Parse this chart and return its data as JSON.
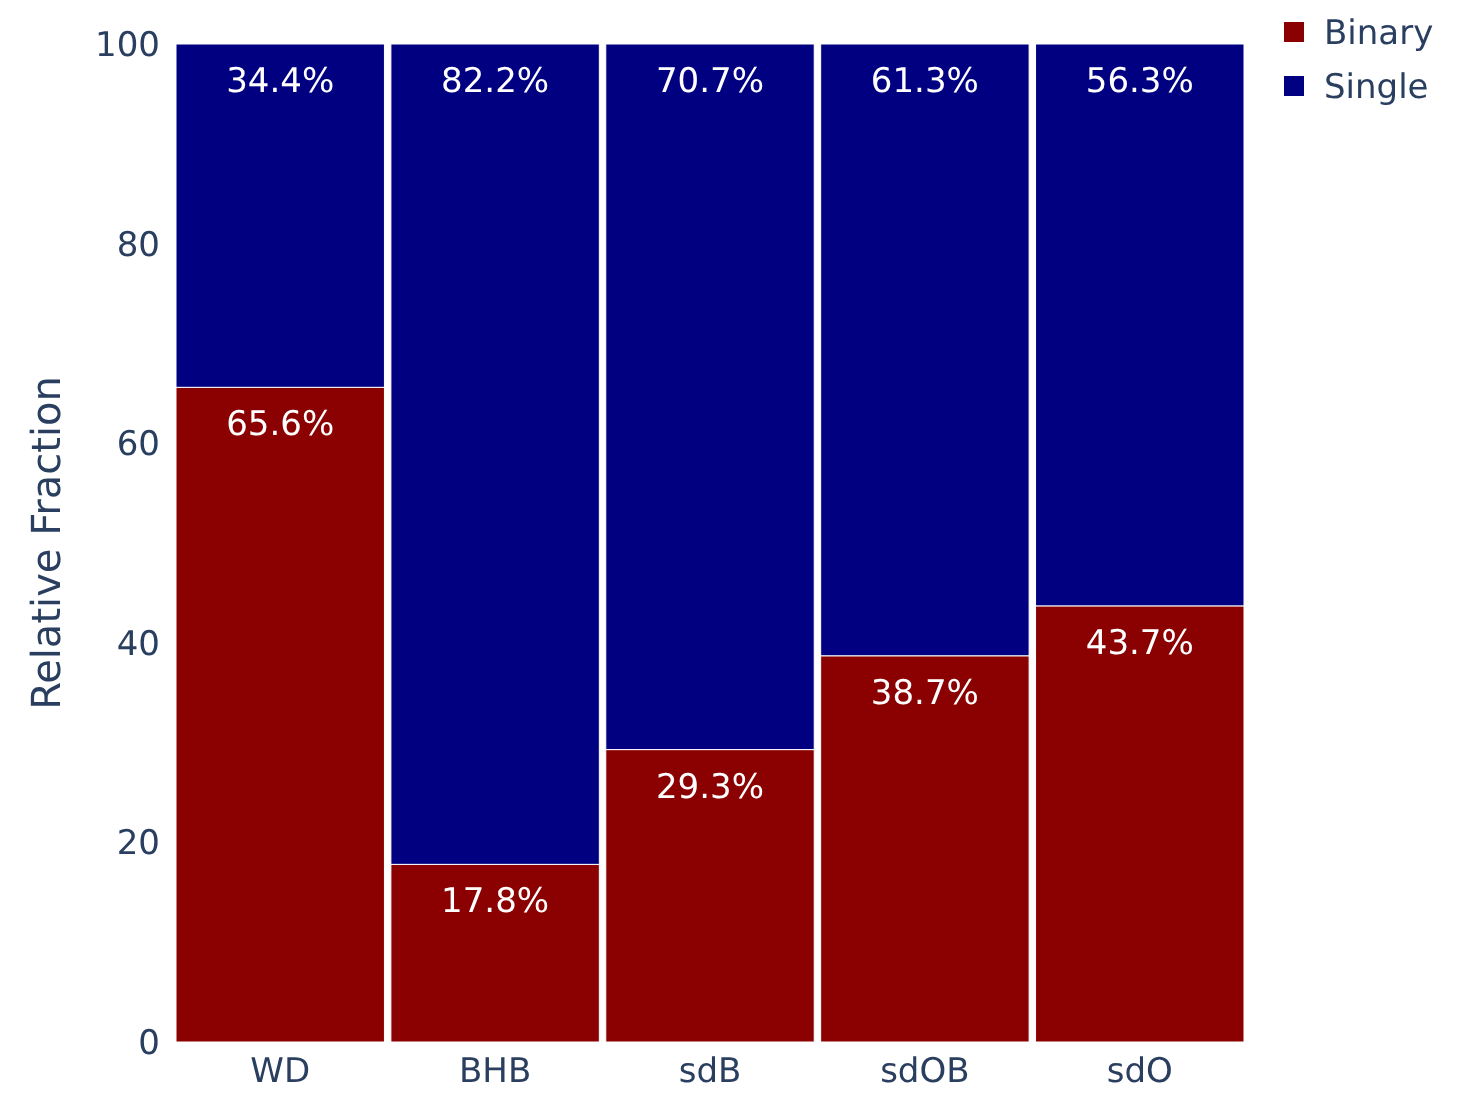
{
  "chart_data": {
    "type": "bar",
    "stacked": true,
    "ylabel": "Relative Fraction",
    "categories": [
      "WD",
      "BHB",
      "sdB",
      "sdOB",
      "sdO"
    ],
    "ylim": [
      0,
      100
    ],
    "yticks": [
      0,
      20,
      40,
      60,
      80,
      100
    ],
    "grid": false,
    "legend": "top right",
    "series": [
      {
        "name": "Binary",
        "color": "#8b0000",
        "values": [
          65.6,
          17.8,
          29.3,
          38.7,
          43.7
        ],
        "value_labels": [
          "65.6%",
          "17.8%",
          "29.3%",
          "38.7%",
          "43.7%"
        ]
      },
      {
        "name": "Single",
        "color": "#000080",
        "values": [
          34.4,
          82.2,
          70.7,
          61.3,
          56.3
        ],
        "value_labels": [
          "34.4%",
          "82.2%",
          "70.7%",
          "61.3%",
          "56.3%"
        ]
      }
    ]
  }
}
